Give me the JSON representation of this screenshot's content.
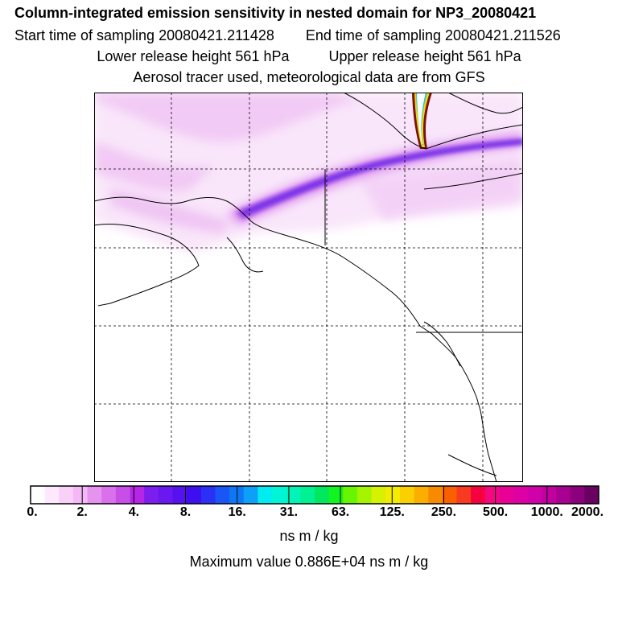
{
  "title": "Column-integrated emission sensitivity in nested domain for NP3_20080421",
  "sampling": {
    "start": "Start time of sampling 20080421.211428",
    "end": "End time of sampling 20080421.211526"
  },
  "release": {
    "lower": "Lower release height  561 hPa",
    "upper": "Upper release height  561 hPa"
  },
  "tracer_note": "Aerosol tracer used, meteorological data are from GFS",
  "colorbar": {
    "tick_labels": [
      "0.",
      "2.",
      "4.",
      "8.",
      "16.",
      "31.",
      "63.",
      "125.",
      "250.",
      "500.",
      "1000.",
      "2000."
    ],
    "colors": [
      "#ffffff",
      "#fde8fd",
      "#f8d0f8",
      "#f3b8f5",
      "#e692ef",
      "#d970ec",
      "#c74fe8",
      "#b526e6",
      "#7d1df0",
      "#6a18f2",
      "#5512ef",
      "#3d0ef0",
      "#2a30f5",
      "#1a56f6",
      "#0c78f7",
      "#0ea0f6",
      "#00ecf0",
      "#00f5d6",
      "#00f4b8",
      "#00f094",
      "#00e860",
      "#10f520",
      "#68f500",
      "#a4f400",
      "#d6f200",
      "#f4ec00",
      "#fbd000",
      "#fbae00",
      "#f98a00",
      "#f96000",
      "#f73a20",
      "#f70040",
      "#f20880",
      "#e90096",
      "#dd00a4",
      "#d000ab",
      "#c2009f",
      "#a80090",
      "#8c007e",
      "#6a0060"
    ],
    "units": "ns m / kg"
  },
  "max_value_text": "Maximum value  0.886E+04 ns m / kg"
}
